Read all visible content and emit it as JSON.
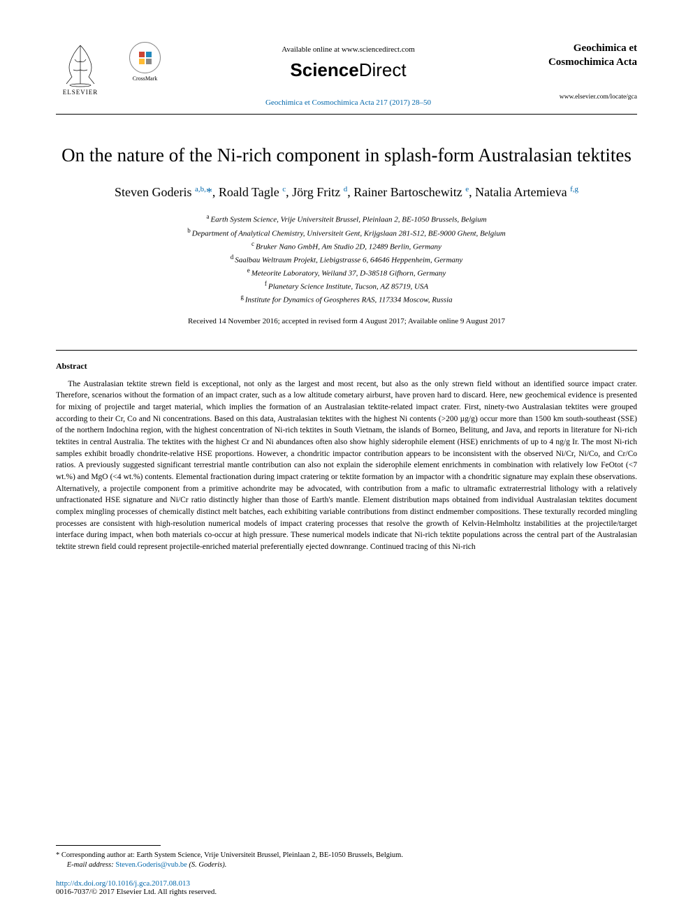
{
  "header": {
    "elsevier_label": "ELSEVIER",
    "crossmark_label": "CrossMark",
    "available_text": "Available online at www.sciencedirect.com",
    "sciencedirect_brand": "ScienceDirect",
    "journal_ref_text": "Geochimica et Cosmochimica Acta 217 (2017) 28–50",
    "journal_title": "Geochimica et Cosmochimica Acta",
    "journal_locate": "www.elsevier.com/locate/gca"
  },
  "title": "On the nature of the Ni-rich component in splash-form Australasian tektites",
  "authors_html": "Steven Goderis <sup><a>a,b,</a></sup><a>*</a>, Roald Tagle <sup><a>c</a></sup>, Jörg Fritz <sup><a>d</a></sup>, Rainer Bartoschewitz <sup><a>e</a></sup>, Natalia Artemieva <sup><a>f,g</a></sup>",
  "affiliations": [
    {
      "sup": "a",
      "text": "Earth System Science, Vrije Universiteit Brussel, Pleinlaan 2, BE-1050 Brussels, Belgium"
    },
    {
      "sup": "b",
      "text": "Department of Analytical Chemistry, Universiteit Gent, Krijgslaan 281-S12, BE-9000 Ghent, Belgium"
    },
    {
      "sup": "c",
      "text": "Bruker Nano GmbH, Am Studio 2D, 12489 Berlin, Germany"
    },
    {
      "sup": "d",
      "text": "Saalbau Weltraum Projekt, Liebigstrasse 6, 64646 Heppenheim, Germany"
    },
    {
      "sup": "e",
      "text": "Meteorite Laboratory, Weiland 37, D-38518 Gifhorn, Germany"
    },
    {
      "sup": "f",
      "text": "Planetary Science Institute, Tucson, AZ 85719, USA"
    },
    {
      "sup": "g",
      "text": "Institute for Dynamics of Geospheres RAS, 117334 Moscow, Russia"
    }
  ],
  "dates": "Received 14 November 2016; accepted in revised form 4 August 2017; Available online 9 August 2017",
  "abstract": {
    "heading": "Abstract",
    "body": "The Australasian tektite strewn field is exceptional, not only as the largest and most recent, but also as the only strewn field without an identified source impact crater. Therefore, scenarios without the formation of an impact crater, such as a low altitude cometary airburst, have proven hard to discard. Here, new geochemical evidence is presented for mixing of projectile and target material, which implies the formation of an Australasian tektite-related impact crater. First, ninety-two Australasian tektites were grouped according to their Cr, Co and Ni concentrations. Based on this data, Australasian tektites with the highest Ni contents (>200 µg/g) occur more than 1500 km south-southeast (SSE) of the northern Indochina region, with the highest concentration of Ni-rich tektites in South Vietnam, the islands of Borneo, Belitung, and Java, and reports in literature for Ni-rich tektites in central Australia. The tektites with the highest Cr and Ni abundances often also show highly siderophile element (HSE) enrichments of up to 4 ng/g Ir. The most Ni-rich samples exhibit broadly chondrite-relative HSE proportions. However, a chondritic impactor contribution appears to be inconsistent with the observed Ni/Cr, Ni/Co, and Cr/Co ratios. A previously suggested significant terrestrial mantle contribution can also not explain the siderophile element enrichments in combination with relatively low FeOtot (<7 wt.%) and MgO (<4 wt.%) contents. Elemental fractionation during impact cratering or tektite formation by an impactor with a chondritic signature may explain these observations. Alternatively, a projectile component from a primitive achondrite may be advocated, with contribution from a mafic to ultramafic extraterrestrial lithology with a relatively unfractionated HSE signature and Ni/Cr ratio distinctly higher than those of Earth's mantle. Element distribution maps obtained from individual Australasian tektites document complex mingling processes of chemically distinct melt batches, each exhibiting variable contributions from distinct endmember compositions. These texturally recorded mingling processes are consistent with high-resolution numerical models of impact cratering processes that resolve the growth of Kelvin-Helmholtz instabilities at the projectile/target interface during impact, when both materials co-occur at high pressure. These numerical models indicate that Ni-rich tektite populations across the central part of the Australasian tektite strewn field could represent projectile-enriched material preferentially ejected downrange. Continued tracing of this Ni-rich"
  },
  "footer": {
    "corresponding": "* Corresponding author at: Earth System Science, Vrije Universiteit Brussel, Pleinlaan 2, BE-1050 Brussels, Belgium.",
    "email_label": "E-mail address:",
    "email": "Steven.Goderis@vub.be",
    "email_author": "(S. Goderis).",
    "doi": "http://dx.doi.org/10.1016/j.gca.2017.08.013",
    "copyright": "0016-7037/© 2017 Elsevier Ltd. All rights reserved."
  },
  "colors": {
    "link": "#0066aa",
    "text": "#000000",
    "background": "#ffffff"
  }
}
